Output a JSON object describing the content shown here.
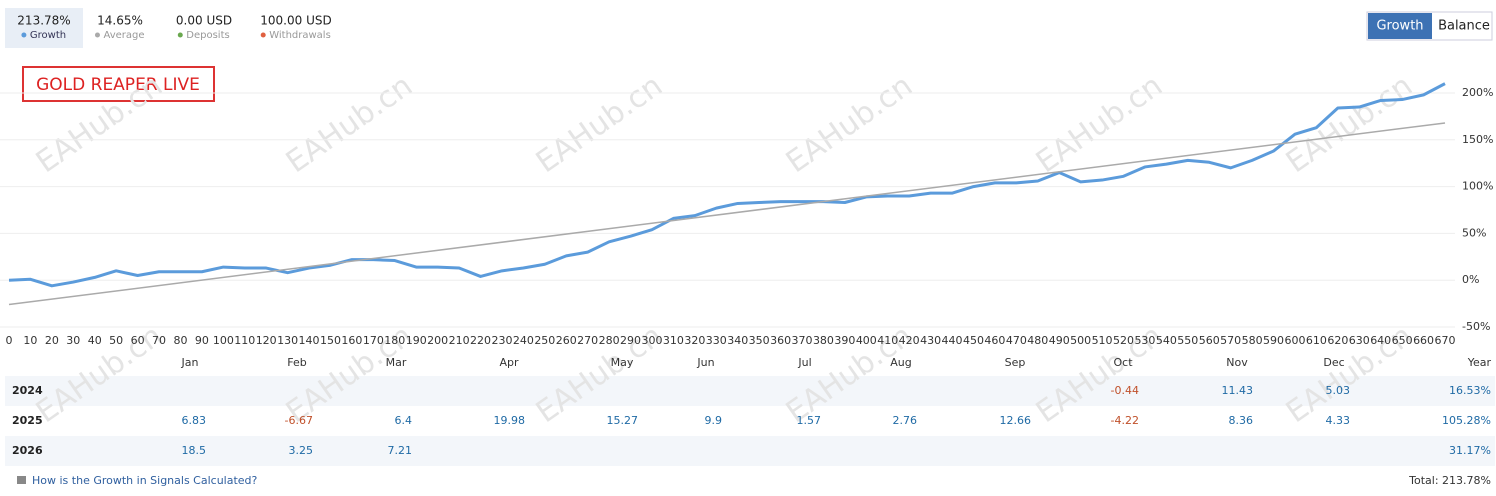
{
  "stats": [
    {
      "value": "213.78%"
    },
    {
      "value": "14.65%"
    },
    {
      "value": "0.00 USD",
      "label": "Deposits",
      "color": "#6aa84f"
    },
    {
      "value": "100.00 USD",
      "label": "Withdrawals",
      "color": "#e06040"
    }
  ],
  "buttons": [
    "Growth",
    "Balance"
  ],
  "watermark": "EAHub.cn",
  "chart_data": {
    "type": "line",
    "title": "GOLD REAPER LIVE",
    "x": [
      0,
      10,
      20,
      30,
      40,
      50,
      60,
      70,
      80,
      90,
      100,
      110,
      120,
      130,
      140,
      150,
      160,
      170,
      180,
      190,
      200,
      210,
      220,
      230,
      240,
      250,
      260,
      270,
      280,
      290,
      300,
      310,
      320,
      330,
      340,
      350,
      360,
      370,
      380,
      390,
      400,
      410,
      420,
      430,
      440,
      450,
      460,
      470,
      480,
      490,
      500,
      510,
      520,
      530,
      540,
      550,
      560,
      570,
      580,
      590,
      600,
      610,
      620,
      630,
      640,
      650,
      660,
      670
    ],
    "series": [
      {
        "name": "Growth",
        "color": "#5b9bdb",
        "values": [
          0,
          1,
          -6,
          -2,
          3,
          10,
          5,
          9,
          9,
          9,
          14,
          13,
          13,
          8,
          13,
          16,
          22,
          22,
          21,
          14,
          14,
          13,
          4,
          10,
          13,
          17,
          26,
          30,
          41,
          47,
          54,
          66,
          69,
          77,
          82,
          83,
          84,
          84,
          84,
          83,
          89,
          90,
          90,
          93,
          93,
          100,
          104,
          104,
          106,
          115,
          105,
          107,
          111,
          121,
          124,
          128,
          126,
          120,
          128,
          138,
          156,
          163,
          184,
          185,
          192,
          193,
          198,
          210
        ]
      },
      {
        "name": "Average",
        "color": "#aaaaaa",
        "x": [
          0,
          670
        ],
        "values": [
          -26,
          168
        ]
      }
    ],
    "xlim": [
      0,
      670
    ],
    "xticks": [
      0,
      10,
      20,
      30,
      40,
      50,
      60,
      70,
      80,
      90,
      100,
      110,
      120,
      130,
      140,
      150,
      160,
      170,
      180,
      190,
      200,
      210,
      220,
      230,
      240,
      250,
      260,
      270,
      280,
      290,
      300,
      310,
      320,
      330,
      340,
      350,
      360,
      370,
      380,
      390,
      400,
      410,
      420,
      430,
      440,
      450,
      460,
      470,
      480,
      490,
      500,
      510,
      520,
      530,
      540,
      550,
      560,
      570,
      580,
      590,
      600,
      610,
      620,
      630,
      640,
      650,
      660,
      670
    ],
    "ylim": [
      -50,
      200
    ],
    "yticks": [
      {
        "value": -50,
        "label": "-50%"
      },
      {
        "value": 0,
        "label": "0%"
      },
      {
        "value": 50,
        "label": "50%"
      },
      {
        "value": 100,
        "label": "100%"
      },
      {
        "value": 150,
        "label": "150%"
      },
      {
        "value": 200,
        "label": "200%"
      }
    ],
    "grid": true
  },
  "table": {
    "columns": [
      "Jan",
      "Feb",
      "Mar",
      "Apr",
      "May",
      "Jun",
      "Jul",
      "Aug",
      "Sep",
      "Oct",
      "Nov",
      "Dec",
      "Year"
    ],
    "rows": [
      [
        "2024",
        null,
        null,
        null,
        null,
        null,
        null,
        null,
        null,
        null,
        "-0.44",
        "11.43",
        "5.03",
        "16.53%"
      ],
      [
        "2025",
        "6.83",
        "-6.67",
        "6.4",
        "19.98",
        "15.27",
        "9.9",
        "1.57",
        "2.76",
        "12.66",
        "-4.22",
        "8.36",
        "4.33",
        "105.28%"
      ],
      [
        "2026",
        "18.5",
        "3.25",
        "7.21",
        null,
        null,
        null,
        null,
        null,
        null,
        null,
        null,
        null,
        "31.17%"
      ]
    ]
  },
  "footer": {
    "link": "How is the Growth in Signals Calculated?",
    "total": "Total: 213.78%"
  }
}
